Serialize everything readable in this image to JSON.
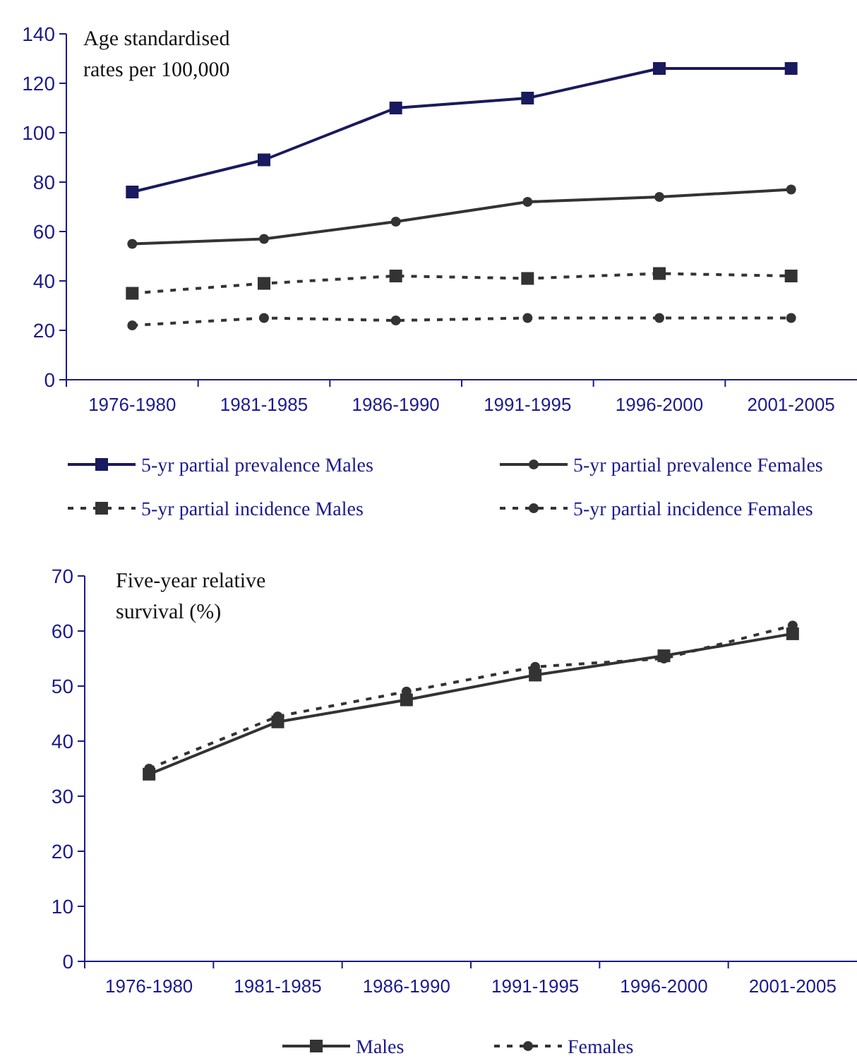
{
  "chart_data": [
    {
      "type": "line",
      "ylabel": "Age standardised rates per 100,000",
      "categories": [
        "1976-1980",
        "1981-1985",
        "1986-1990",
        "1991-1995",
        "1996-2000",
        "2001-2005"
      ],
      "ylim": [
        0,
        140
      ],
      "yticks": [
        0,
        20,
        40,
        60,
        80,
        100,
        120,
        140
      ],
      "grid": false,
      "legend": "bottom",
      "series": [
        {
          "name": "5-yr partial prevalence Males",
          "color": "#1a1a5e",
          "marker": "square",
          "line_style": "solid",
          "values": [
            76,
            89,
            110,
            114,
            126,
            126
          ]
        },
        {
          "name": "5-yr partial prevalence Females",
          "color": "#333333",
          "marker": "circle",
          "line_style": "solid",
          "values": [
            55,
            57,
            64,
            72,
            74,
            77
          ]
        },
        {
          "name": "5-yr partial incidence Males",
          "color": "#333333",
          "marker": "square",
          "line_style": "dotted",
          "values": [
            35,
            39,
            42,
            41,
            43,
            42
          ]
        },
        {
          "name": "5-yr partial incidence Females",
          "color": "#333333",
          "marker": "circle",
          "line_style": "dotted",
          "values": [
            22,
            25,
            24,
            25,
            25,
            25
          ]
        }
      ]
    },
    {
      "type": "line",
      "ylabel": "Five-year relative survival (%)",
      "categories": [
        "1976-1980",
        "1981-1985",
        "1986-1990",
        "1991-1995",
        "1996-2000",
        "2001-2005"
      ],
      "ylim": [
        0,
        70
      ],
      "yticks": [
        0,
        10,
        20,
        30,
        40,
        50,
        60,
        70
      ],
      "grid": false,
      "legend": "bottom",
      "series": [
        {
          "name": "Males",
          "color": "#333333",
          "marker": "square",
          "line_style": "solid",
          "values": [
            34,
            43.5,
            47.5,
            52,
            55.5,
            59.5
          ]
        },
        {
          "name": "Females",
          "color": "#333333",
          "marker": "circle",
          "line_style": "dotted",
          "values": [
            35,
            44.5,
            49,
            53.5,
            55,
            61
          ]
        }
      ]
    }
  ]
}
